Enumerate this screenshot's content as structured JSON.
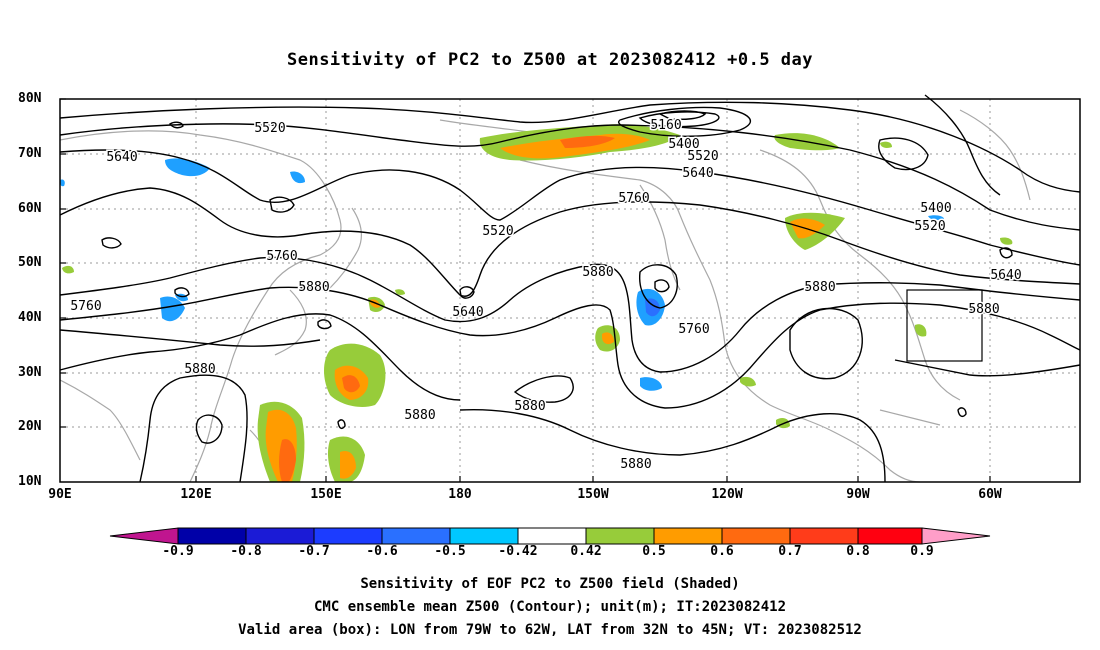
{
  "title": "Sensitivity of PC2 to Z500 at 2023082412 +0.5 day",
  "lat_labels": [
    "80N",
    "70N",
    "60N",
    "50N",
    "40N",
    "30N",
    "20N",
    "10N"
  ],
  "lon_labels": [
    "90E",
    "120E",
    "150E",
    "180",
    "150W",
    "120W",
    "90W",
    "60W"
  ],
  "contour_labels": [
    "5160",
    "5400",
    "5400",
    "5520",
    "5520",
    "5520",
    "5520",
    "5640",
    "5640",
    "5640",
    "5640",
    "5760",
    "5760",
    "5760",
    "5760",
    "5880",
    "5880",
    "5880",
    "5880",
    "5880",
    "5880",
    "5880",
    "5880"
  ],
  "colorbar": {
    "labels": [
      "-0.9",
      "-0.8",
      "-0.7",
      "-0.6",
      "-0.5",
      "-0.42",
      "0.42",
      "0.5",
      "0.6",
      "0.7",
      "0.8",
      "0.9"
    ],
    "colors": [
      "#c0158f",
      "#0000a8",
      "#1b1bd6",
      "#1c3cff",
      "#2a70ff",
      "#1fa0ff",
      "#00c8ff",
      "#ffffff",
      "#97cc3a",
      "#ff9c00",
      "#ff6a10",
      "#ff3c1a",
      "#ff0010",
      "#ff9ec8"
    ]
  },
  "captions": {
    "line1": "Sensitivity of EOF PC2 to Z500 field (Shaded)",
    "line2": "CMC ensemble mean Z500 (Contour); unit(m); IT:2023082412",
    "line3": "Valid area (box): LON from 79W to 62W, LAT from 32N to 45N; VT: 2023082512"
  }
}
